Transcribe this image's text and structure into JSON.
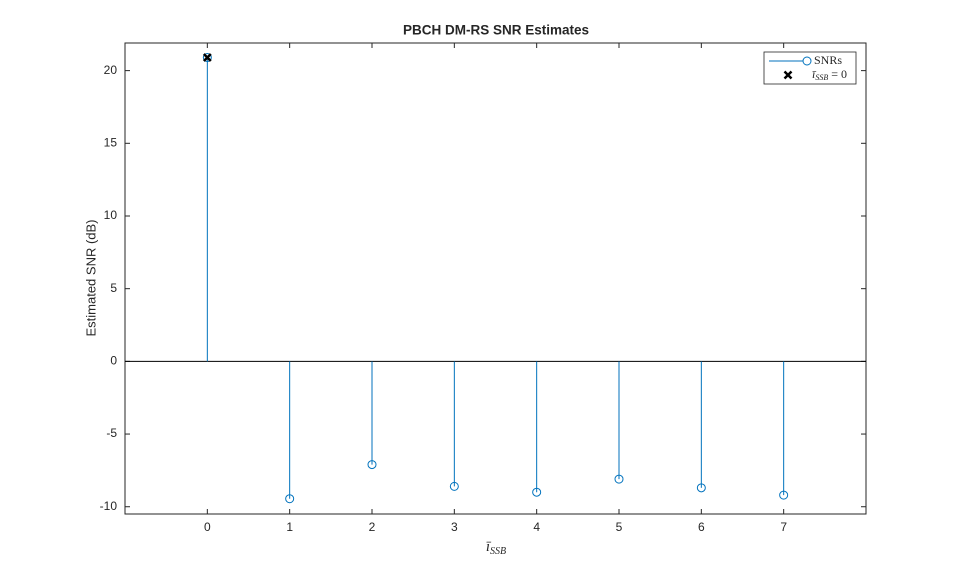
{
  "chart_data": {
    "type": "stem",
    "title": "PBCH DM-RS SNR Estimates",
    "x_label": {
      "base": "ī",
      "sub": "SSB"
    },
    "y_label": "Estimated SNR (dB)",
    "x": [
      0,
      1,
      2,
      3,
      4,
      5,
      6,
      7
    ],
    "series": [
      {
        "name": "SNRs",
        "color": "#0072bd",
        "values": [
          20.9,
          -9.45,
          -7.1,
          -8.6,
          -9.0,
          -8.1,
          -8.7,
          -9.2
        ]
      }
    ],
    "highlight": {
      "label": {
        "base": "ī",
        "sub": "SSB",
        "rest": " = 0"
      },
      "x": 0,
      "value": 20.9,
      "color": "#000000"
    },
    "xlim": [
      -1,
      8
    ],
    "ylim": [
      -10.5,
      21.9
    ],
    "xticks": [
      0,
      1,
      2,
      3,
      4,
      5,
      6,
      7
    ],
    "yticks": [
      -10,
      -5,
      0,
      5,
      10,
      15,
      20
    ],
    "legend": "upper right"
  }
}
